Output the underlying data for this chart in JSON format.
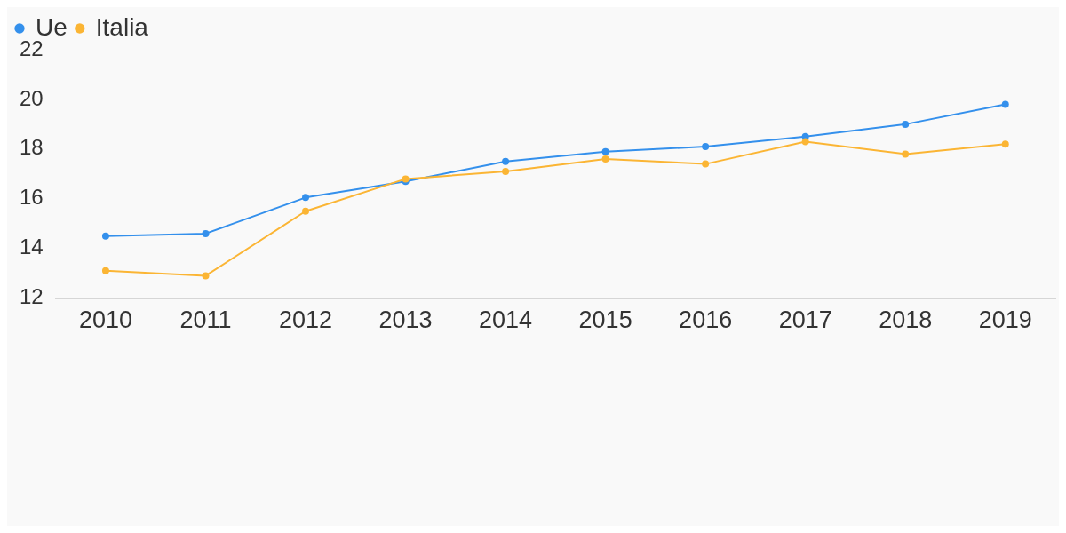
{
  "chart_data": {
    "type": "line",
    "categories": [
      "2010",
      "2011",
      "2012",
      "2013",
      "2014",
      "2015",
      "2016",
      "2017",
      "2018",
      "2019"
    ],
    "series": [
      {
        "name": "Ue",
        "color": "#3490ec",
        "values": [
          14.5,
          14.6,
          16.05,
          16.7,
          17.5,
          17.9,
          18.1,
          18.5,
          19.0,
          19.8
        ]
      },
      {
        "name": "Italia",
        "color": "#fbb534",
        "values": [
          13.1,
          12.9,
          15.5,
          16.8,
          17.1,
          17.6,
          17.4,
          18.3,
          17.8,
          18.2
        ]
      }
    ],
    "ylim": [
      12,
      22
    ],
    "yticks": [
      12,
      14,
      16,
      18,
      20,
      22
    ],
    "grid": false,
    "legend": "top left",
    "marker": "circle",
    "line_style": "solid"
  }
}
